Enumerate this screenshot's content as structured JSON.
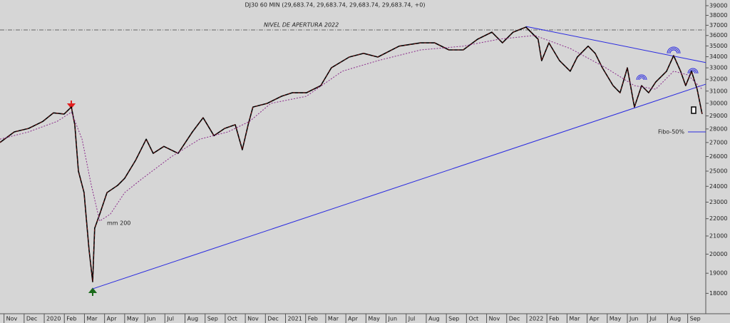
{
  "chart_data": {
    "type": "line",
    "title": "DJ30 60 MIN (29,683.74, 29,683.74, 29,683.74, 29,683.74, +0)",
    "log_scale": true,
    "xlim": [
      -0.2,
      34.9
    ],
    "ylim": [
      17040,
      39600
    ],
    "yticks": [
      18000,
      19000,
      20000,
      21000,
      22000,
      23000,
      24000,
      25000,
      26000,
      27000,
      28000,
      29000,
      30000,
      31000,
      32000,
      33000,
      34000,
      35000,
      36000,
      37000,
      38000,
      39000
    ],
    "xticks": [
      {
        "value": 0,
        "label": "Nov"
      },
      {
        "value": 1,
        "label": "Dec"
      },
      {
        "value": 2,
        "label": "2020"
      },
      {
        "value": 3,
        "label": "Feb"
      },
      {
        "value": 4,
        "label": "Mar"
      },
      {
        "value": 5,
        "label": "Apr"
      },
      {
        "value": 6,
        "label": "May"
      },
      {
        "value": 7,
        "label": "Jun"
      },
      {
        "value": 8,
        "label": "Jul"
      },
      {
        "value": 9,
        "label": "Aug"
      },
      {
        "value": 10,
        "label": "Sep"
      },
      {
        "value": 11,
        "label": "Oct"
      },
      {
        "value": 12,
        "label": "Nov"
      },
      {
        "value": 13,
        "label": "Dec"
      },
      {
        "value": 14,
        "label": "2021"
      },
      {
        "value": 15,
        "label": "Feb"
      },
      {
        "value": 16,
        "label": "Mar"
      },
      {
        "value": 17,
        "label": "Apr"
      },
      {
        "value": 18,
        "label": "May"
      },
      {
        "value": 19,
        "label": "Jun"
      },
      {
        "value": 20,
        "label": "Jul"
      },
      {
        "value": 21,
        "label": "Aug"
      },
      {
        "value": 22,
        "label": "Sep"
      },
      {
        "value": 23,
        "label": "Oct"
      },
      {
        "value": 24,
        "label": "Nov"
      },
      {
        "value": 25,
        "label": "Dec"
      },
      {
        "value": 26,
        "label": "2022"
      },
      {
        "value": 27,
        "label": "Feb"
      },
      {
        "value": 28,
        "label": "Mar"
      },
      {
        "value": 29,
        "label": "Apr"
      },
      {
        "value": 30,
        "label": "May"
      },
      {
        "value": 31,
        "label": "Jun"
      },
      {
        "value": 32,
        "label": "Jul"
      },
      {
        "value": 33,
        "label": "Aug"
      },
      {
        "value": 34,
        "label": "Sep"
      }
    ],
    "series": [
      {
        "color": "#000000",
        "x": [
          -0.2,
          0.51,
          1.22,
          1.93,
          2.46,
          2.99,
          3.35,
          3.52,
          3.7,
          3.98,
          4.23,
          4.41,
          4.51,
          4.76,
          5.12,
          5.65,
          6.0,
          6.54,
          7.07,
          7.42,
          7.95,
          8.66,
          9.37,
          9.9,
          10.44,
          10.97,
          11.5,
          11.85,
          12.14,
          12.38,
          13.09,
          13.8,
          14.33,
          15.04,
          15.75,
          16.28,
          17.17,
          17.88,
          18.59,
          19.65,
          20.72,
          21.42,
          22.13,
          22.84,
          23.55,
          24.26,
          24.79,
          25.32,
          25.96,
          26.56,
          26.74,
          27.1,
          27.63,
          28.16,
          28.51,
          29.05,
          29.4,
          29.76,
          30.29,
          30.64,
          31.0,
          31.35,
          31.71,
          32.06,
          32.41,
          32.95,
          33.3,
          33.65,
          33.9,
          34.19,
          34.47,
          34.72
        ],
        "values": [
          27000,
          27780,
          28040,
          28570,
          29240,
          29150,
          29700,
          28320,
          25000,
          23600,
          20240,
          18570,
          21440,
          22270,
          23600,
          24060,
          24520,
          25730,
          27240,
          26220,
          26720,
          26220,
          27780,
          28860,
          27500,
          28040,
          28320,
          26480,
          28320,
          29700,
          29990,
          30570,
          30860,
          30860,
          31460,
          33000,
          33970,
          34310,
          33970,
          34980,
          35290,
          35290,
          34630,
          34630,
          35640,
          36320,
          35290,
          36320,
          36820,
          35640,
          33640,
          35290,
          33640,
          32700,
          33970,
          34980,
          34310,
          33000,
          31460,
          30860,
          33000,
          29700,
          31460,
          30860,
          31760,
          32700,
          34100,
          32700,
          31460,
          32700,
          31160,
          29150
        ]
      },
      {
        "name": "mm 200",
        "color": "#8b2b8b",
        "dashed": true,
        "x": [
          -0.2,
          1.22,
          2.64,
          3.35,
          3.88,
          4.34,
          4.76,
          5.29,
          6.0,
          6.89,
          8.31,
          9.73,
          11.14,
          12.21,
          13.27,
          15.04,
          16.82,
          18.59,
          20.72,
          22.84,
          24.61,
          26.39,
          28.16,
          29.93,
          31.35,
          32.41,
          33.3,
          34.01,
          34.72
        ],
        "values": [
          27240,
          27780,
          28570,
          29300,
          27240,
          24060,
          21860,
          22270,
          23600,
          24520,
          25970,
          27240,
          27780,
          28570,
          29990,
          30570,
          32700,
          33640,
          34630,
          34980,
          35640,
          36000,
          34760,
          33000,
          31460,
          31160,
          32700,
          32380,
          31160
        ]
      }
    ],
    "trendlines": [
      {
        "color": "#2a2ae0",
        "x": [
          4.41,
          34.9
        ],
        "values": [
          18220,
          31580
        ]
      },
      {
        "color": "#2a2ae0",
        "x": [
          25.96,
          34.9
        ],
        "values": [
          36880,
          33470
        ]
      }
    ],
    "reference_lines": [
      {
        "label": "NIVEL DE APERTURA 2022",
        "value": 36540,
        "color": "#666666",
        "dashed": true
      },
      {
        "label": "Fibo-50%",
        "value": 27780,
        "color": "#2a2ae0",
        "dashed": false
      }
    ]
  }
}
